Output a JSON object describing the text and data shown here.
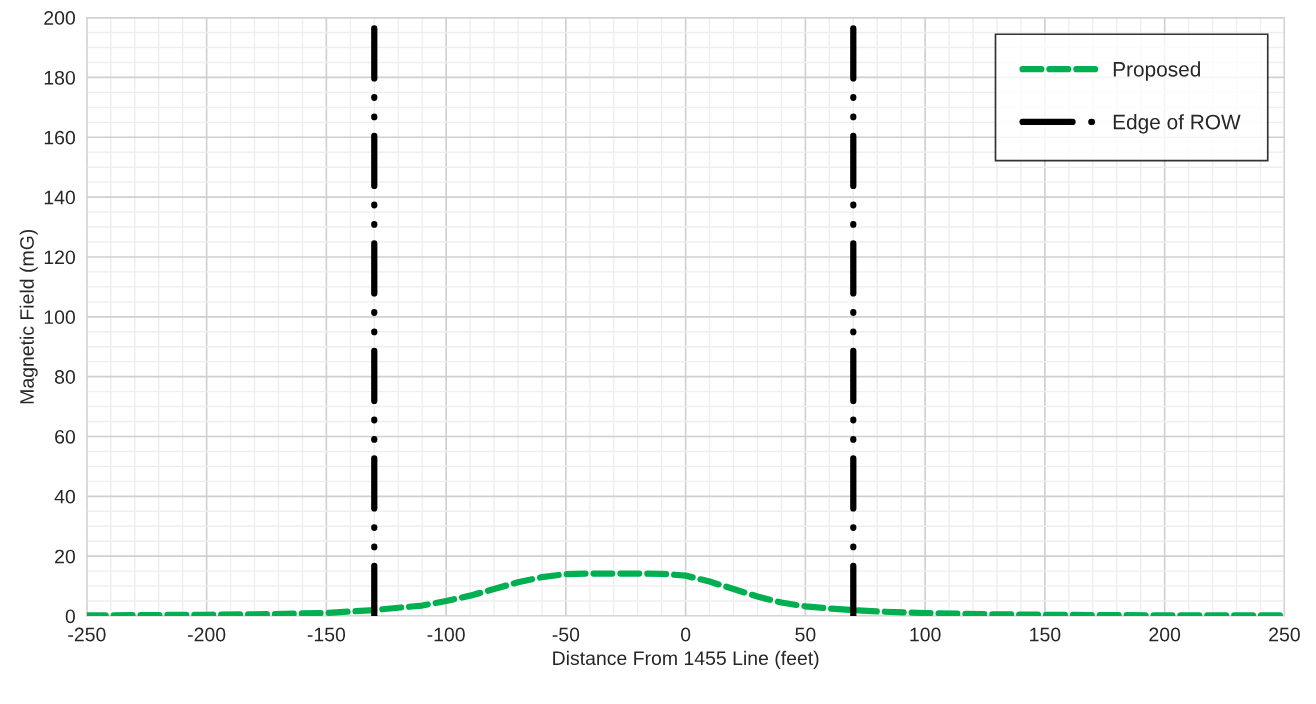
{
  "chart_data": {
    "type": "line",
    "xlabel": "Distance From 1455 Line (feet)",
    "ylabel": "Magnetic Field (mG)",
    "xlim": [
      -250,
      250
    ],
    "xticks": [
      -250,
      -200,
      -150,
      -100,
      -50,
      0,
      50,
      100,
      150,
      200,
      250
    ],
    "ylim": [
      0,
      200
    ],
    "yticks": [
      0,
      20,
      40,
      60,
      80,
      100,
      120,
      140,
      160,
      180,
      200
    ],
    "grid": true,
    "legend": "top right",
    "marker": "none",
    "series": [
      {
        "name": "Proposed",
        "color": "#00b050",
        "line_style": "dashed",
        "x": [
          -250,
          -225,
          -200,
          -175,
          -150,
          -130,
          -110,
          -100,
          -90,
          -80,
          -70,
          -60,
          -50,
          -40,
          -30,
          -20,
          -10,
          0,
          10,
          20,
          30,
          40,
          50,
          60,
          70,
          80,
          100,
          125,
          150,
          200,
          250
        ],
        "values": [
          0.2,
          0.3,
          0.4,
          0.6,
          1.0,
          2,
          3.5,
          5,
          6.8,
          9,
          11.3,
          13,
          14,
          14.2,
          14.2,
          14.2,
          14.1,
          13.5,
          11.5,
          9,
          6.5,
          4.5,
          3.2,
          2.5,
          2,
          1.5,
          1.0,
          0.6,
          0.4,
          0.2,
          0.2
        ]
      },
      {
        "name": "Edge of ROW",
        "color": "#000000",
        "line_style": "dashdot",
        "x": [
          -130,
          -130
        ],
        "values": [
          0,
          200
        ]
      },
      {
        "color": "#000000",
        "line_style": "dashdot",
        "x": [
          70,
          70
        ],
        "values": [
          0,
          200
        ]
      }
    ]
  }
}
